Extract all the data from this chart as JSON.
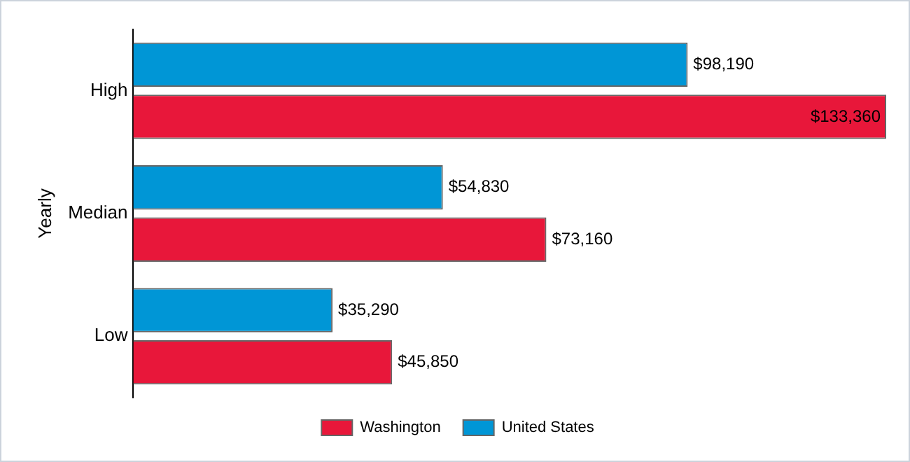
{
  "chart_data": {
    "type": "bar",
    "orientation": "horizontal",
    "ylabel": "Yearly",
    "categories": [
      "High",
      "Median",
      "Low"
    ],
    "series": [
      {
        "name": "United States",
        "color": "#0096d6",
        "values": [
          98190,
          54830,
          35290
        ],
        "value_labels": [
          "$98,190",
          "$54,830",
          "$35,290"
        ]
      },
      {
        "name": "Washington",
        "color": "#e8173a",
        "values": [
          133360,
          73160,
          45850
        ],
        "value_labels": [
          "$133,360",
          "$73,160",
          "$45,850"
        ]
      }
    ],
    "legend": "bottom",
    "tick_labels": "y"
  }
}
